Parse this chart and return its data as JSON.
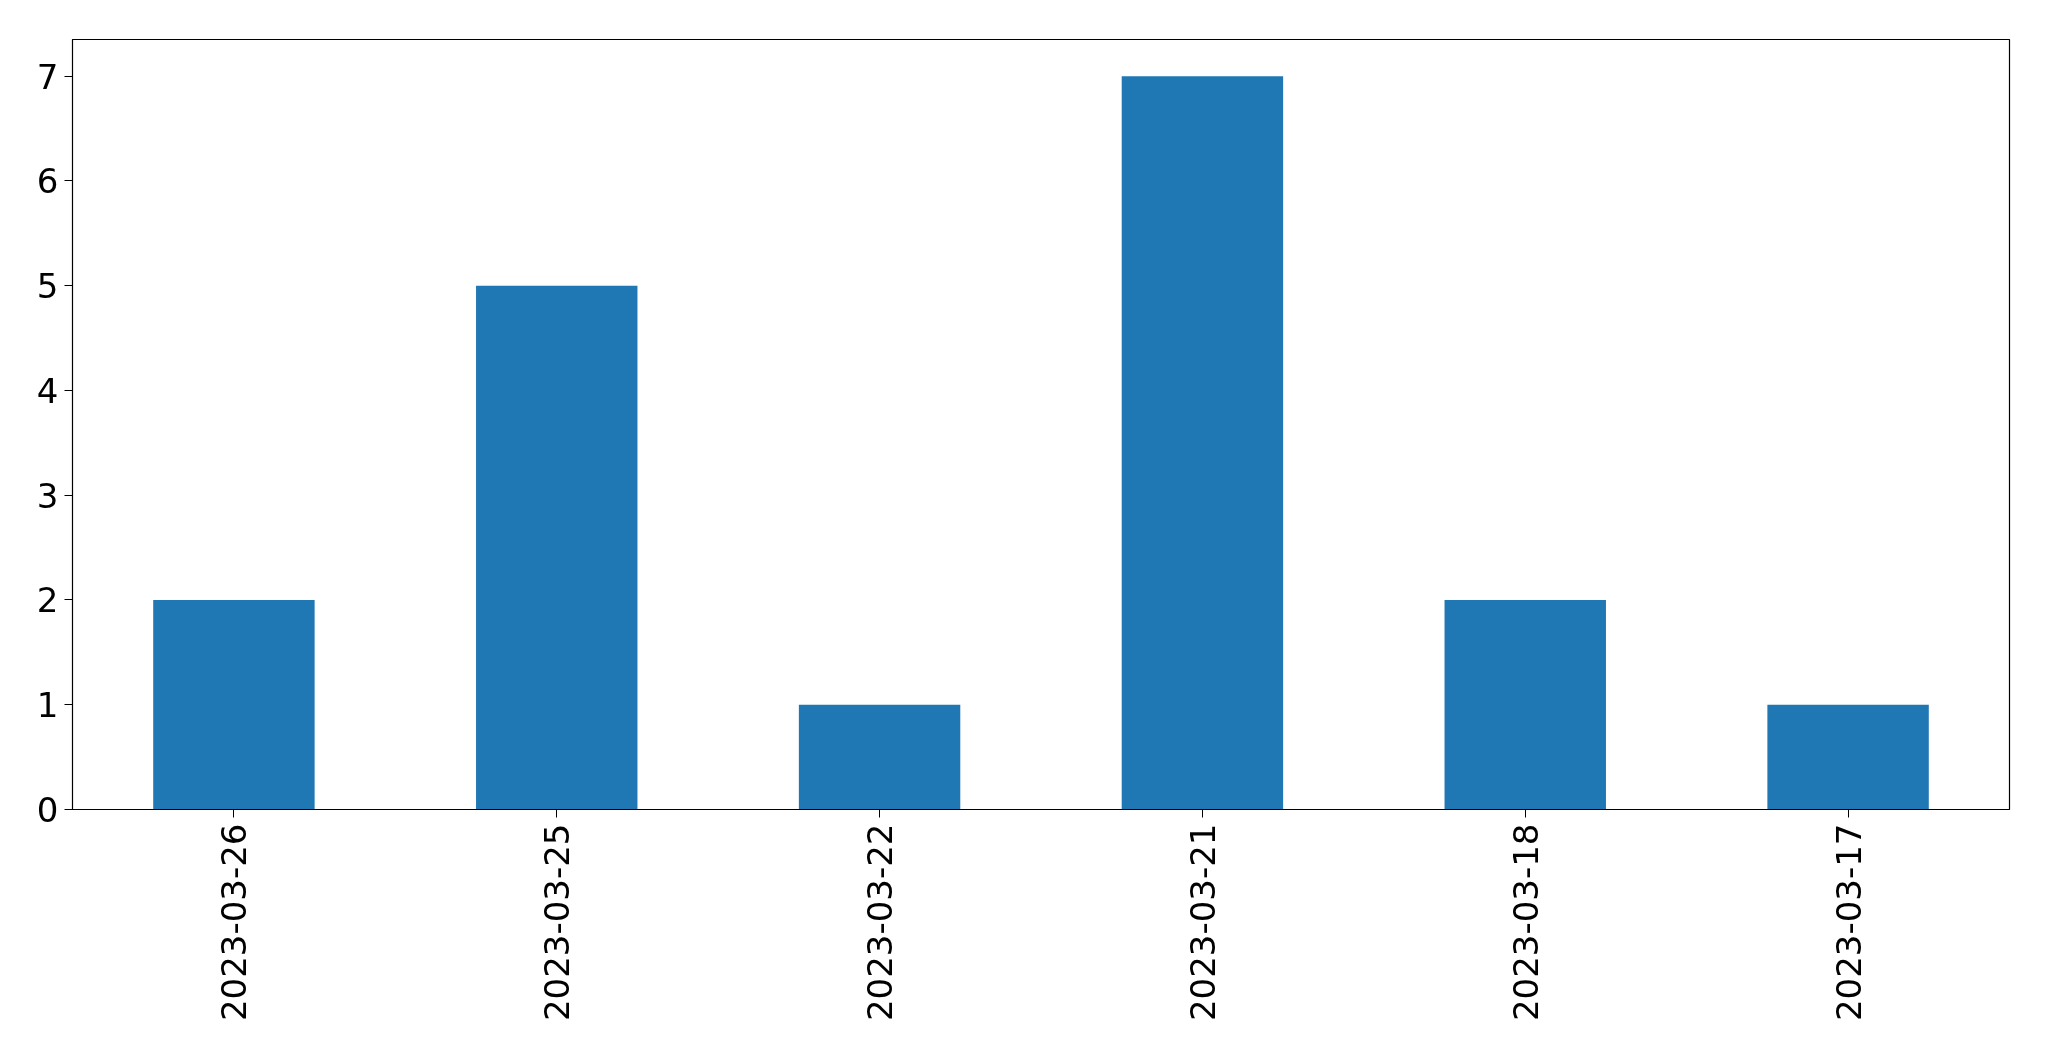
{
  "chart_data": {
    "type": "bar",
    "categories": [
      "2023-03-26",
      "2023-03-25",
      "2023-03-22",
      "2023-03-21",
      "2023-03-18",
      "2023-03-17"
    ],
    "values": [
      2,
      5,
      1,
      7,
      2,
      1
    ],
    "color": "#1f77b4",
    "ylim": [
      0,
      7.35
    ],
    "yticks": [
      0,
      1,
      2,
      3,
      4,
      5,
      6,
      7
    ],
    "grid": false
  }
}
